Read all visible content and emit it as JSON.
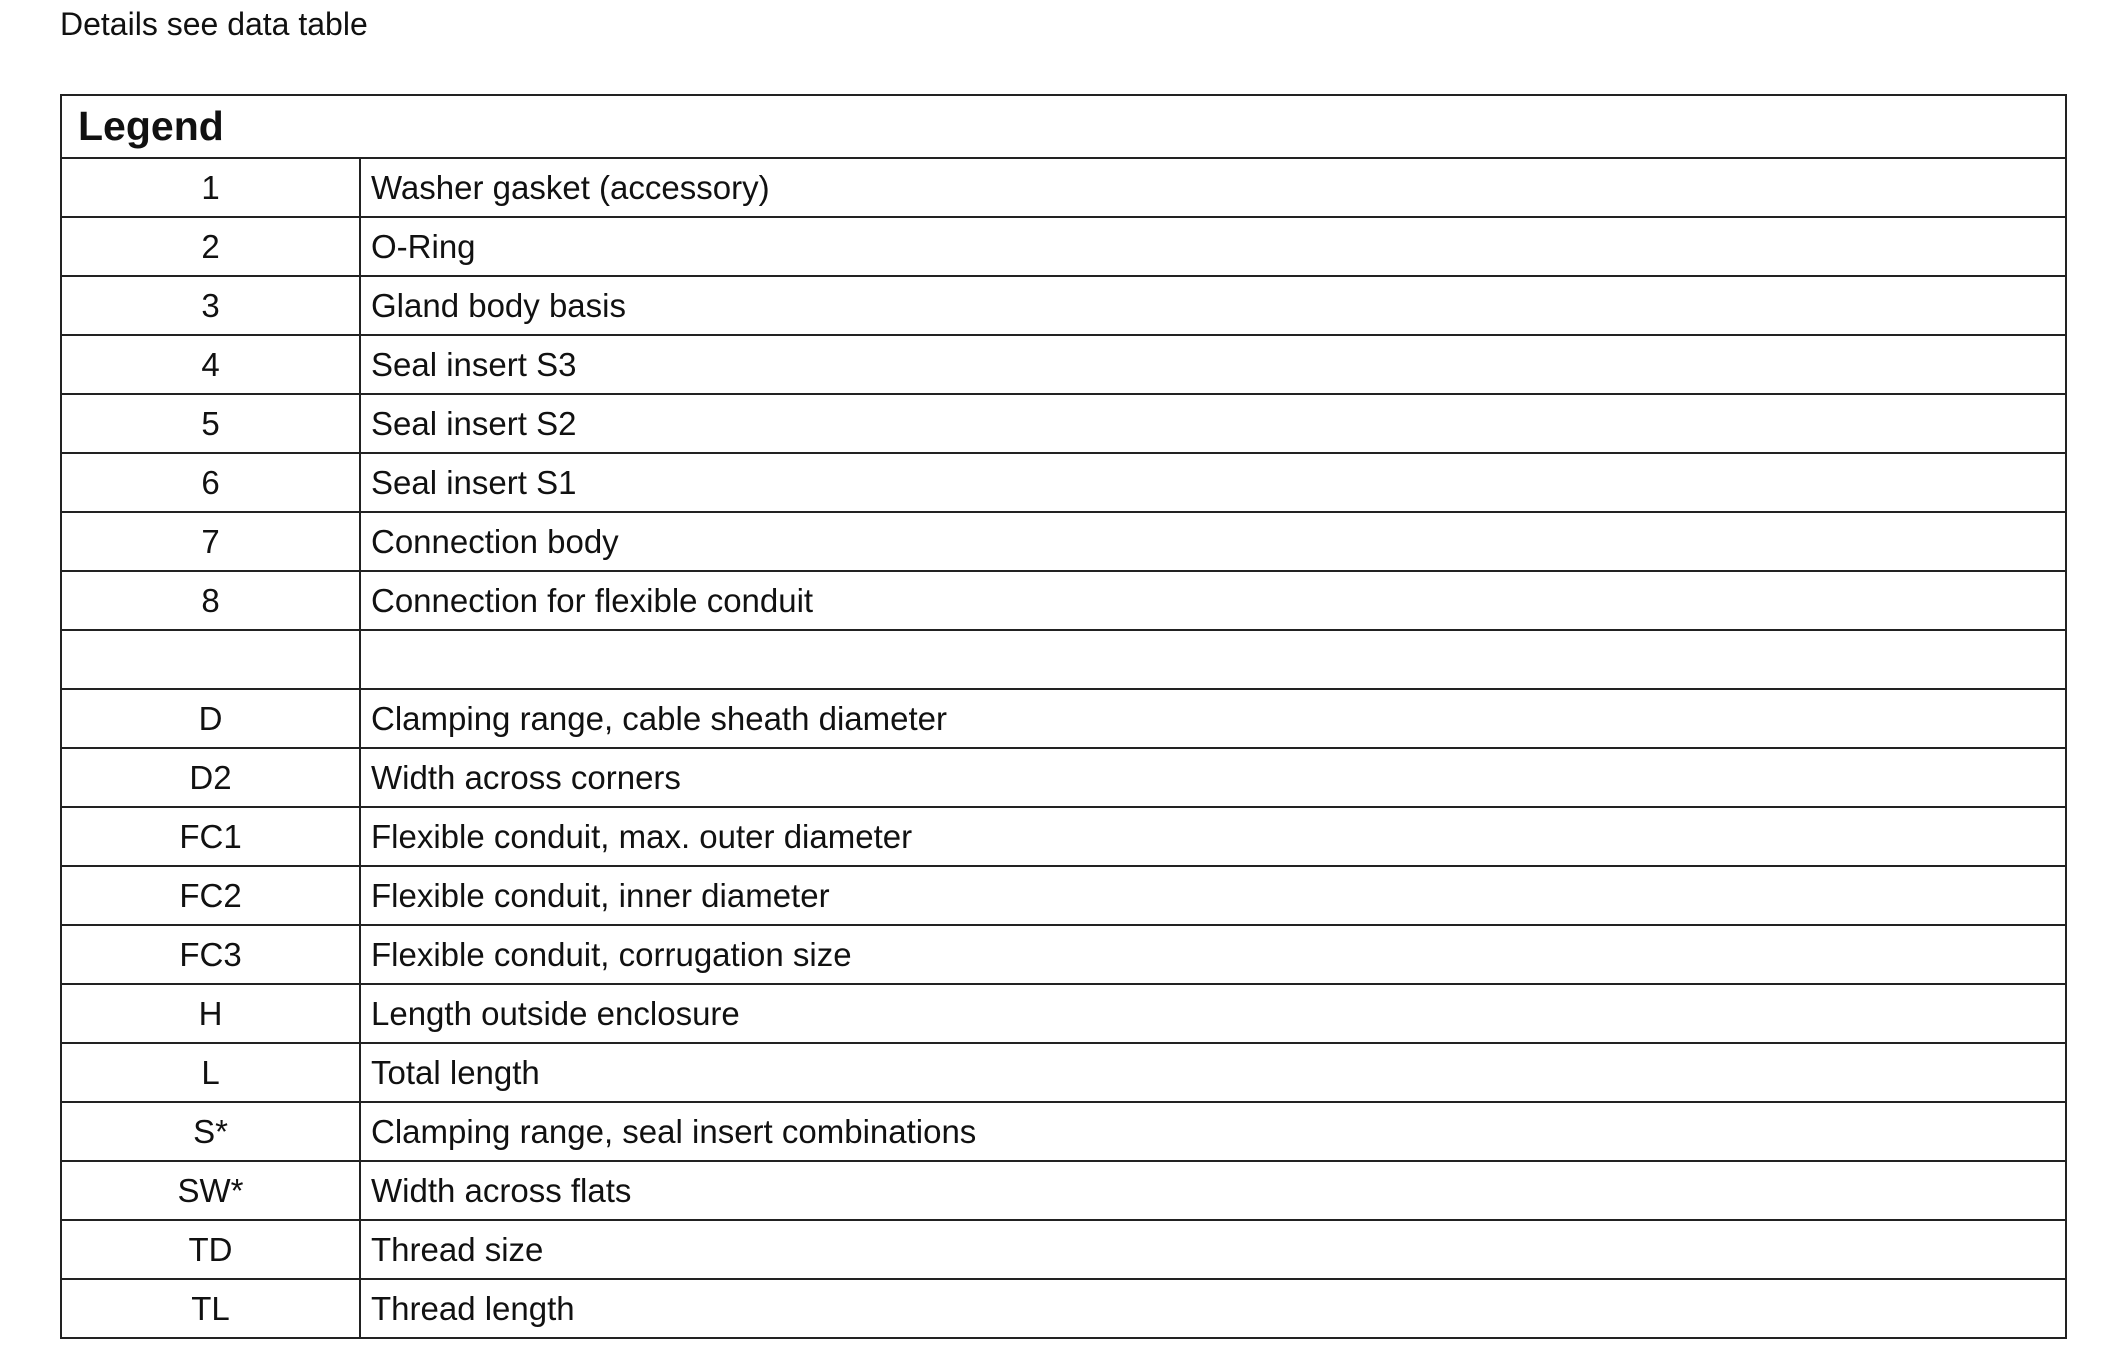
{
  "caption": "Details see data table",
  "table": {
    "title": "Legend",
    "rows": [
      [
        "1",
        "Washer gasket (accessory)"
      ],
      [
        "2",
        "O-Ring"
      ],
      [
        "3",
        "Gland body basis"
      ],
      [
        "4",
        "Seal insert S3"
      ],
      [
        "5",
        "Seal insert S2"
      ],
      [
        "6",
        "Seal insert S1"
      ],
      [
        "7",
        "Connection body"
      ],
      [
        "8",
        "Connection for flexible conduit"
      ],
      [
        null,
        null
      ],
      [
        "D",
        "Clamping range, cable sheath diameter"
      ],
      [
        "D2",
        "Width across corners"
      ],
      [
        "FC1",
        "Flexible conduit, max. outer diameter"
      ],
      [
        "FC2",
        "Flexible conduit, inner diameter"
      ],
      [
        "FC3",
        "Flexible conduit, corrugation size"
      ],
      [
        "H",
        "Length outside enclosure"
      ],
      [
        "L",
        "Total length"
      ],
      [
        "S*",
        "Clamping range, seal insert combinations"
      ],
      [
        "SW*",
        "Width across flats"
      ],
      [
        "TD",
        "Thread size"
      ],
      [
        "TL",
        "Thread length"
      ]
    ]
  }
}
